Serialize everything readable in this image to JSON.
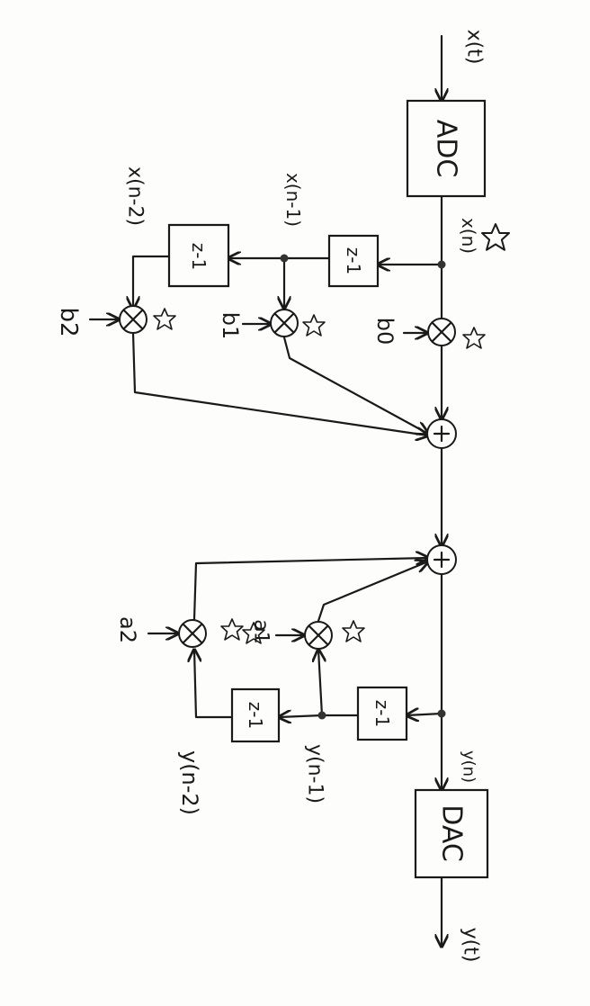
{
  "signals": {
    "x_t": "x(t)",
    "x_n": "x(n)",
    "x_n1": "x(n-1)",
    "x_n2": "x(n-2)",
    "y_n": "y(n)",
    "y_n1": "y(n-1)",
    "y_n2": "y(n-2)",
    "y_t": "y(t)"
  },
  "blocks": {
    "adc": "ADC",
    "dac": "DAC",
    "delay_x1": "z-1",
    "delay_x2": "z-1",
    "delay_y1": "z-1",
    "delay_y2": "z-1"
  },
  "coefficients": {
    "b0": "b0",
    "b1": "b1",
    "b2": "b2",
    "a1": "a1",
    "a2": "a2"
  }
}
